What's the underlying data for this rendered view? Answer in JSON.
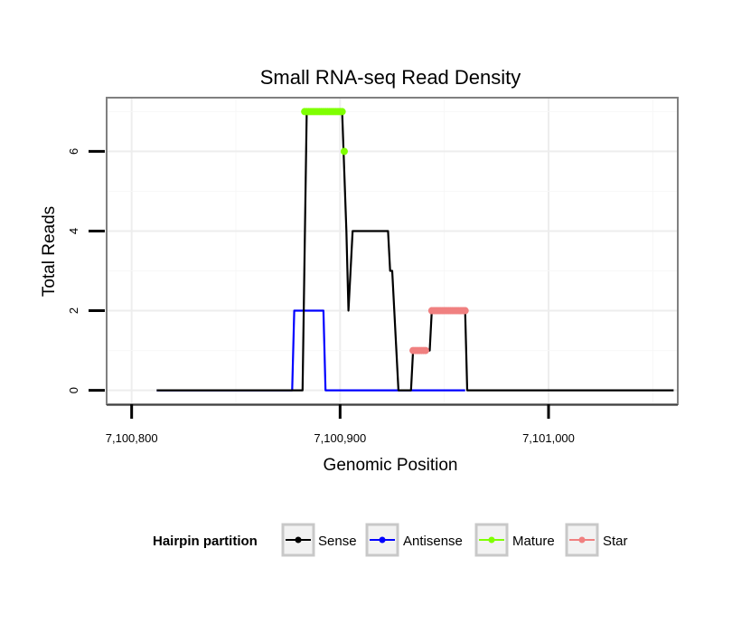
{
  "chart_data": {
    "type": "line",
    "title": "Small RNA-seq Read Density",
    "xlabel": "Genomic Position",
    "ylabel": "Total Reads",
    "xlim": [
      7100788,
      7101062
    ],
    "ylim": [
      -0.35,
      7.35
    ],
    "xticks": [
      {
        "value": 7100800,
        "label": "7,100,800"
      },
      {
        "value": 7100900,
        "label": "7,100,900"
      },
      {
        "value": 7101000,
        "label": "7,101,000"
      }
    ],
    "yticks": [
      {
        "value": 0,
        "label": "0"
      },
      {
        "value": 2,
        "label": "2"
      },
      {
        "value": 4,
        "label": "4"
      },
      {
        "value": 6,
        "label": "6"
      }
    ],
    "grid": true,
    "legend": {
      "title": "Hairpin partition",
      "position": "bottom",
      "entries": [
        {
          "label": "Sense",
          "color": "#000000"
        },
        {
          "label": "Antisense",
          "color": "#0000ff"
        },
        {
          "label": "Mature",
          "color": "#7fff00"
        },
        {
          "label": "Star",
          "color": "#f08080"
        }
      ]
    },
    "series": [
      {
        "name": "Sense",
        "color": "#000000",
        "kind": "line",
        "x": [
          7100812,
          7100882,
          7100884,
          7100901,
          7100903,
          7100904,
          7100906,
          7100923,
          7100924,
          7100925,
          7100926,
          7100928,
          7100934,
          7100935,
          7100937,
          7100943,
          7100944,
          7100960,
          7100961,
          7101060
        ],
        "y": [
          0,
          0,
          7,
          7,
          4,
          2,
          4,
          4,
          3,
          3,
          2,
          0,
          0,
          1,
          1,
          1,
          2,
          2,
          0,
          0
        ]
      },
      {
        "name": "Antisense",
        "color": "#0000ff",
        "kind": "line",
        "x": [
          7100812,
          7100877,
          7100878,
          7100892,
          7100893,
          7100960
        ],
        "y": [
          0,
          0,
          2,
          2,
          0,
          0
        ]
      },
      {
        "name": "Mature",
        "color": "#7fff00",
        "kind": "points",
        "x": [
          7100883,
          7100884,
          7100885,
          7100886,
          7100887,
          7100888,
          7100889,
          7100890,
          7100891,
          7100892,
          7100893,
          7100894,
          7100895,
          7100896,
          7100897,
          7100898,
          7100899,
          7100900,
          7100901,
          7100902
        ],
        "y": [
          7,
          7,
          7,
          7,
          7,
          7,
          7,
          7,
          7,
          7,
          7,
          7,
          7,
          7,
          7,
          7,
          7,
          7,
          7,
          6
        ]
      },
      {
        "name": "Star",
        "color": "#f08080",
        "kind": "points",
        "x": [
          7100935,
          7100936,
          7100937,
          7100938,
          7100939,
          7100940,
          7100941,
          7100944,
          7100945,
          7100946,
          7100947,
          7100948,
          7100949,
          7100950,
          7100951,
          7100952,
          7100953,
          7100954,
          7100955,
          7100956,
          7100957,
          7100958,
          7100959,
          7100960
        ],
        "y": [
          1,
          1,
          1,
          1,
          1,
          1,
          1,
          2,
          2,
          2,
          2,
          2,
          2,
          2,
          2,
          2,
          2,
          2,
          2,
          2,
          2,
          2,
          2,
          2
        ]
      }
    ]
  }
}
